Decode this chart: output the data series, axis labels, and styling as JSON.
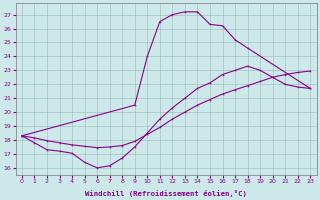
{
  "xlabel": "Windchill (Refroidissement éolien,°C)",
  "line_color": "#880088",
  "bg_color": "#cce8e8",
  "grid_color": "#99bbbb",
  "ylim": [
    15.5,
    27.8
  ],
  "xlim": [
    -0.5,
    23.5
  ],
  "yticks": [
    16,
    17,
    18,
    19,
    20,
    21,
    22,
    23,
    24,
    25,
    26,
    27
  ],
  "xticks": [
    0,
    1,
    2,
    3,
    4,
    5,
    6,
    7,
    8,
    9,
    10,
    11,
    12,
    13,
    14,
    15,
    16,
    17,
    18,
    19,
    20,
    21,
    22,
    23
  ],
  "curve_bell": {
    "x": [
      0,
      9,
      10,
      11,
      12,
      13,
      14,
      15,
      16,
      17,
      18,
      23
    ],
    "y": [
      18.3,
      20.5,
      24.0,
      26.5,
      27.0,
      27.2,
      27.2,
      26.3,
      26.2,
      25.2,
      24.6,
      21.7
    ]
  },
  "curve_vshape": {
    "x": [
      0,
      1,
      2,
      3,
      4,
      5,
      6,
      7,
      8,
      9,
      10,
      11,
      12,
      13,
      14,
      15,
      16,
      17,
      18,
      19,
      20,
      21,
      22,
      23
    ],
    "y": [
      18.3,
      17.8,
      17.3,
      17.2,
      17.05,
      16.4,
      16.0,
      16.15,
      16.7,
      17.5,
      18.5,
      19.5,
      20.3,
      21.0,
      21.7,
      22.1,
      22.7,
      23.0,
      23.3,
      23.0,
      22.5,
      22.0,
      21.8,
      21.7
    ]
  },
  "curve_diag": {
    "x": [
      0,
      1,
      2,
      3,
      4,
      5,
      6,
      7,
      8,
      9,
      10,
      11,
      12,
      13,
      14,
      15,
      16,
      17,
      18,
      19,
      20,
      21,
      22,
      23
    ],
    "y": [
      18.3,
      18.15,
      17.95,
      17.8,
      17.65,
      17.55,
      17.45,
      17.5,
      17.6,
      17.9,
      18.4,
      18.9,
      19.5,
      20.0,
      20.5,
      20.9,
      21.3,
      21.6,
      21.9,
      22.2,
      22.5,
      22.7,
      22.85,
      22.95
    ]
  }
}
